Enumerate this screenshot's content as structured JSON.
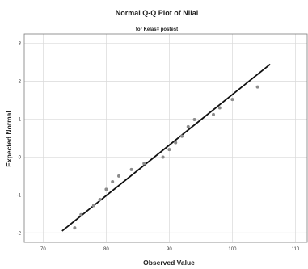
{
  "chart_data": {
    "type": "scatter",
    "title": "Normal Q-Q Plot of Nilai",
    "subtitle": "for Kelas= postest",
    "xlabel": "Observed Value",
    "ylabel": "Expected Normal",
    "xlim": [
      67,
      112
    ],
    "ylim": [
      -2.25,
      3.25
    ],
    "x_ticks": [
      "70",
      "80",
      "90",
      "100",
      "110"
    ],
    "y_ticks": [
      "3",
      "2",
      "1",
      "0",
      "-1",
      "-2"
    ],
    "grid": true,
    "points": [
      {
        "x": 75,
        "y": -1.87
      },
      {
        "x": 76,
        "y": -1.52
      },
      {
        "x": 78,
        "y": -1.28
      },
      {
        "x": 79,
        "y": -1.12
      },
      {
        "x": 80,
        "y": -0.85
      },
      {
        "x": 81,
        "y": -0.65
      },
      {
        "x": 82,
        "y": -0.5
      },
      {
        "x": 84,
        "y": -0.33
      },
      {
        "x": 86,
        "y": -0.17
      },
      {
        "x": 89,
        "y": 0.0
      },
      {
        "x": 90,
        "y": 0.2
      },
      {
        "x": 91,
        "y": 0.38
      },
      {
        "x": 92,
        "y": 0.55
      },
      {
        "x": 93,
        "y": 0.8
      },
      {
        "x": 94,
        "y": 0.99
      },
      {
        "x": 97,
        "y": 1.12
      },
      {
        "x": 98,
        "y": 1.3
      },
      {
        "x": 100,
        "y": 1.52
      },
      {
        "x": 104,
        "y": 1.85
      }
    ],
    "reference_line": {
      "x": [
        73,
        106
      ],
      "y": [
        -1.95,
        2.45
      ]
    }
  },
  "colors": {
    "point": "#8c8c8c",
    "line": "#111111",
    "grid": "#d9d9d9",
    "frame": "#7a7a7a"
  }
}
